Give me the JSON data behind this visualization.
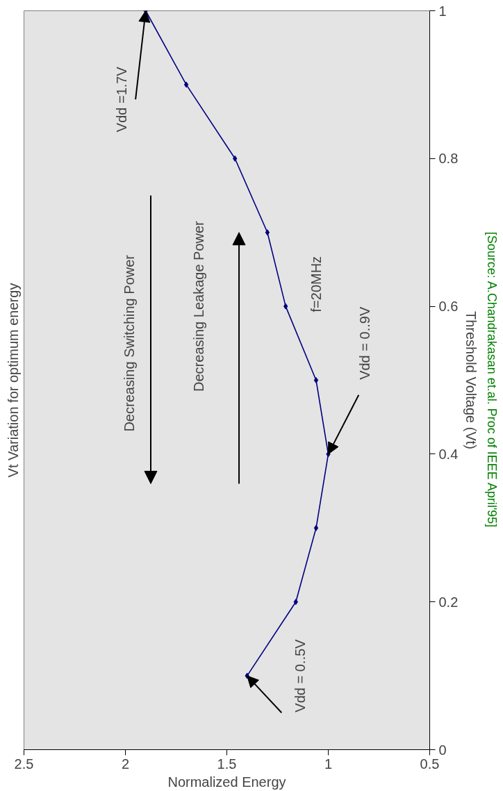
{
  "chart_data": {
    "type": "line",
    "title": "Vt Variation for optimum energy",
    "xlabel": "Normalized Energy",
    "ylabel": "Threshold Voltage (Vt)",
    "series": [
      {
        "color": "#000080",
        "x": [
          1.4,
          1.16,
          1.06,
          1.0,
          1.06,
          1.21,
          1.3,
          1.46,
          1.7,
          1.9
        ],
        "values": [
          0.1,
          0.2,
          0.3,
          0.4,
          0.5,
          0.6,
          0.7,
          0.8,
          0.9,
          1.0
        ]
      }
    ],
    "xlim": [
      2.5,
      0.5
    ],
    "xticks": [
      2.5,
      2,
      1.5,
      1,
      0.5
    ],
    "ylim": [
      0,
      1
    ],
    "yticks": [
      0,
      0.2,
      0.4,
      0.6,
      0.8,
      1
    ],
    "marker": "diamond",
    "grid": false,
    "legend": false,
    "annotations": [
      {
        "text": "Vdd =1.7V",
        "x": 1.9,
        "y": 1.0
      },
      {
        "text": "Vdd = 0..9V",
        "x": 1.0,
        "y": 0.4
      },
      {
        "text": "Vdd = 0..5V",
        "x": 1.4,
        "y": 0.1
      },
      "f=20MHz",
      "Decreasing Switching Power",
      "Decreasing Leakage Power",
      "[Source: A.Chandrakasan et.al. Proc of IEEE April'95]"
    ]
  }
}
